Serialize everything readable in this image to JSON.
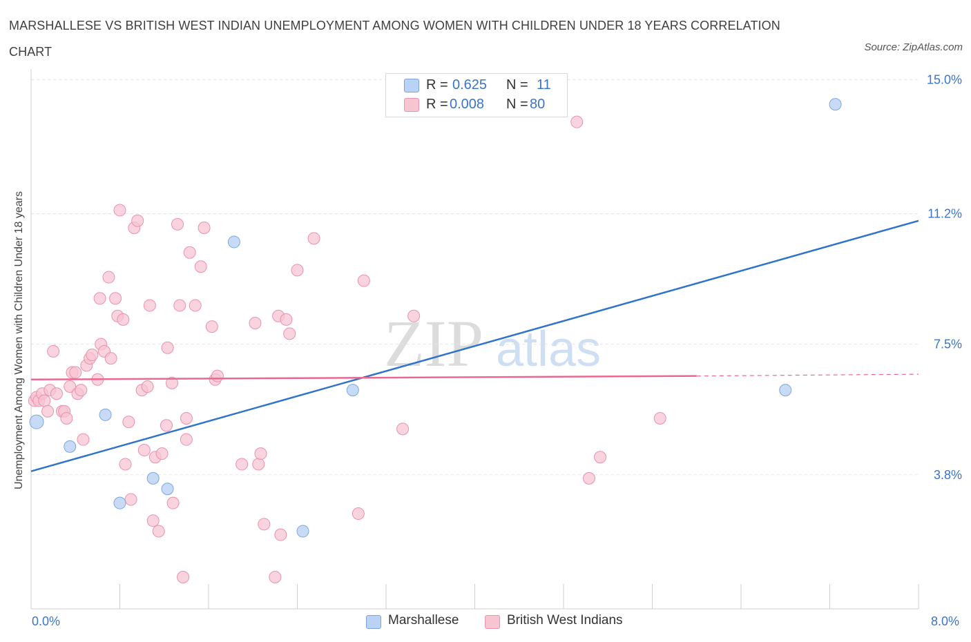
{
  "title": "MARSHALLESE VS BRITISH WEST INDIAN UNEMPLOYMENT AMONG WOMEN WITH CHILDREN UNDER 18 YEARS CORRELATION CHART",
  "source": "Source: ZipAtlas.com",
  "watermark": {
    "zip": "ZIP",
    "atlas": "atlas"
  },
  "legend": {
    "row1": {
      "r_label": "R =",
      "r_value": "0.625",
      "n_label": "N =",
      "n_value": "11"
    },
    "row2": {
      "r_label": "R =",
      "r_value": "0.008",
      "n_label": "N =",
      "n_value": "80"
    }
  },
  "bottom_legend": {
    "series1": "Marshallese",
    "series2": "British West Indians"
  },
  "colors": {
    "marshallese_fill": "#b9d2f5",
    "marshallese_stroke": "#7ea6dd",
    "marshallese_line": "#2f74c8",
    "bwi_fill": "#f7c4d2",
    "bwi_stroke": "#e892ad",
    "bwi_line": "#e8698f",
    "axis_text": "#3b74c9",
    "grid": "#e3e3e3"
  },
  "chart_data": {
    "type": "scatter",
    "title": "MARSHALLESE VS BRITISH WEST INDIAN UNEMPLOYMENT AMONG WOMEN WITH CHILDREN UNDER 18 YEARS CORRELATION CHART",
    "xlabel": "",
    "ylabel": "Unemployment Among Women with Children Under 18 years",
    "xlim": [
      0,
      8
    ],
    "ylim": [
      0,
      15.3
    ],
    "x_tick_labels": [
      "0.0%",
      "8.0%"
    ],
    "y_ticks": [
      3.8,
      7.5,
      11.2,
      15.0
    ],
    "y_tick_labels": [
      "3.8%",
      "7.5%",
      "11.2%",
      "15.0%"
    ],
    "series": [
      {
        "name": "Marshallese",
        "R": 0.625,
        "N": 11,
        "points": [
          [
            0.05,
            5.3
          ],
          [
            0.35,
            4.6
          ],
          [
            0.67,
            5.5
          ],
          [
            0.8,
            3.0
          ],
          [
            1.1,
            3.7
          ],
          [
            1.23,
            3.4
          ],
          [
            1.83,
            10.4
          ],
          [
            2.45,
            2.2
          ],
          [
            2.9,
            6.2
          ],
          [
            6.8,
            6.2
          ],
          [
            7.25,
            14.3
          ]
        ],
        "trend": {
          "x": [
            0,
            8
          ],
          "y": [
            3.9,
            11.0
          ]
        }
      },
      {
        "name": "British West Indians",
        "R": 0.008,
        "N": 80,
        "points": [
          [
            0.03,
            5.9
          ],
          [
            0.05,
            6.0
          ],
          [
            0.07,
            5.9
          ],
          [
            0.1,
            6.1
          ],
          [
            0.12,
            5.9
          ],
          [
            0.15,
            5.6
          ],
          [
            0.17,
            6.2
          ],
          [
            0.2,
            7.3
          ],
          [
            0.23,
            6.1
          ],
          [
            0.28,
            5.6
          ],
          [
            0.3,
            5.6
          ],
          [
            0.32,
            5.4
          ],
          [
            0.35,
            6.3
          ],
          [
            0.37,
            6.7
          ],
          [
            0.4,
            6.7
          ],
          [
            0.42,
            6.1
          ],
          [
            0.45,
            6.2
          ],
          [
            0.47,
            4.8
          ],
          [
            0.5,
            6.9
          ],
          [
            0.53,
            7.1
          ],
          [
            0.55,
            7.2
          ],
          [
            0.6,
            6.5
          ],
          [
            0.62,
            8.8
          ],
          [
            0.63,
            7.5
          ],
          [
            0.66,
            7.3
          ],
          [
            0.7,
            9.4
          ],
          [
            0.72,
            7.1
          ],
          [
            0.76,
            8.8
          ],
          [
            0.78,
            8.3
          ],
          [
            0.8,
            11.3
          ],
          [
            0.83,
            8.2
          ],
          [
            0.85,
            4.1
          ],
          [
            0.88,
            5.3
          ],
          [
            0.9,
            3.1
          ],
          [
            0.93,
            10.8
          ],
          [
            0.96,
            11.0
          ],
          [
            1.0,
            6.2
          ],
          [
            1.02,
            4.5
          ],
          [
            1.05,
            6.3
          ],
          [
            1.07,
            8.6
          ],
          [
            1.1,
            2.5
          ],
          [
            1.12,
            4.3
          ],
          [
            1.15,
            2.2
          ],
          [
            1.18,
            4.4
          ],
          [
            1.22,
            5.2
          ],
          [
            1.23,
            7.4
          ],
          [
            1.27,
            6.4
          ],
          [
            1.28,
            3.0
          ],
          [
            1.32,
            10.9
          ],
          [
            1.34,
            8.6
          ],
          [
            1.37,
            0.9
          ],
          [
            1.4,
            5.4
          ],
          [
            1.4,
            4.8
          ],
          [
            1.43,
            10.1
          ],
          [
            1.48,
            8.6
          ],
          [
            1.53,
            9.7
          ],
          [
            1.56,
            10.8
          ],
          [
            1.63,
            8.0
          ],
          [
            1.66,
            6.5
          ],
          [
            1.68,
            6.6
          ],
          [
            1.9,
            4.1
          ],
          [
            2.02,
            8.1
          ],
          [
            2.05,
            4.1
          ],
          [
            2.07,
            4.4
          ],
          [
            2.1,
            2.4
          ],
          [
            2.2,
            0.9
          ],
          [
            2.23,
            8.3
          ],
          [
            2.25,
            2.1
          ],
          [
            2.3,
            8.2
          ],
          [
            2.33,
            7.8
          ],
          [
            2.4,
            9.6
          ],
          [
            2.55,
            10.5
          ],
          [
            2.95,
            2.7
          ],
          [
            3.0,
            9.3
          ],
          [
            3.35,
            5.1
          ],
          [
            3.45,
            8.3
          ],
          [
            4.92,
            13.8
          ],
          [
            5.03,
            3.7
          ],
          [
            5.13,
            4.3
          ],
          [
            5.67,
            5.4
          ]
        ],
        "trend": {
          "x": [
            0,
            6.0
          ],
          "y": [
            6.5,
            6.6
          ],
          "dashed_extension": {
            "x": [
              6.0,
              8.0
            ],
            "y": [
              6.6,
              6.65
            ]
          }
        }
      }
    ]
  }
}
